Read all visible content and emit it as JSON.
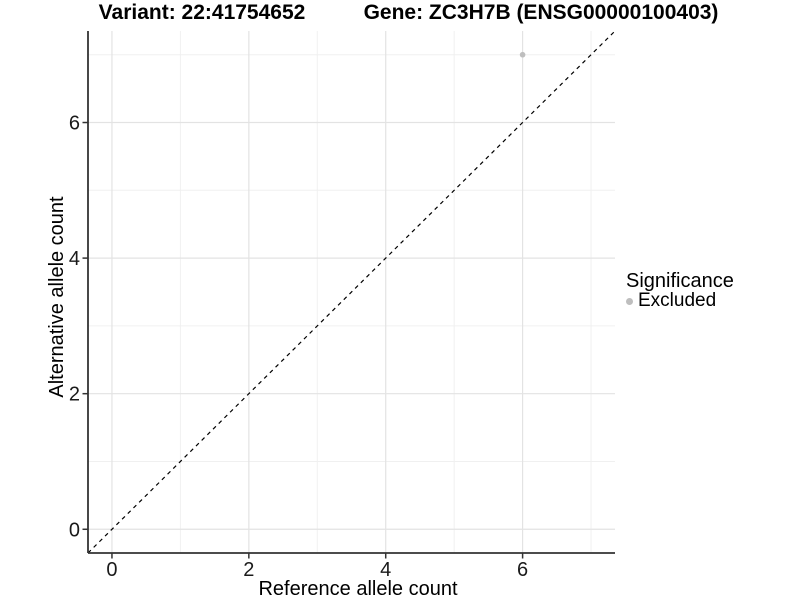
{
  "chart_data": {
    "type": "scatter",
    "titles": {
      "variant": "Variant: 22:41754652",
      "gene": "Gene: ZC3H7B (ENSG00000100403)"
    },
    "xlabel": "Reference allele count",
    "ylabel": "Alternative allele count",
    "xlim": [
      -0.35,
      7.35
    ],
    "ylim": [
      -0.35,
      7.35
    ],
    "x_major_ticks": [
      0,
      2,
      4,
      6
    ],
    "y_major_ticks": [
      0,
      2,
      4,
      6
    ],
    "x_minor_gridlines": [
      1,
      3,
      5,
      7
    ],
    "y_minor_gridlines": [
      1,
      3,
      5,
      7
    ],
    "grid": true,
    "legend_position": "right-center",
    "legend": {
      "title": "Significance",
      "items": [
        {
          "label": "Excluded",
          "color": "#bebebe",
          "marker": "dot"
        }
      ]
    },
    "series": [
      {
        "name": "Excluded",
        "color": "#bebebe",
        "points": [
          {
            "x": 6,
            "y": 7
          }
        ]
      }
    ],
    "reference_line": {
      "type": "identity",
      "equation": "y = x",
      "style": "dashed",
      "color": "#000000"
    },
    "colors": {
      "background": "#ffffff",
      "grid_major": "#e3e3e3",
      "grid_minor": "#f0f0f0",
      "axis_line": "#333333",
      "tick_label": "#1a1a1a",
      "point": "#bebebe"
    }
  }
}
